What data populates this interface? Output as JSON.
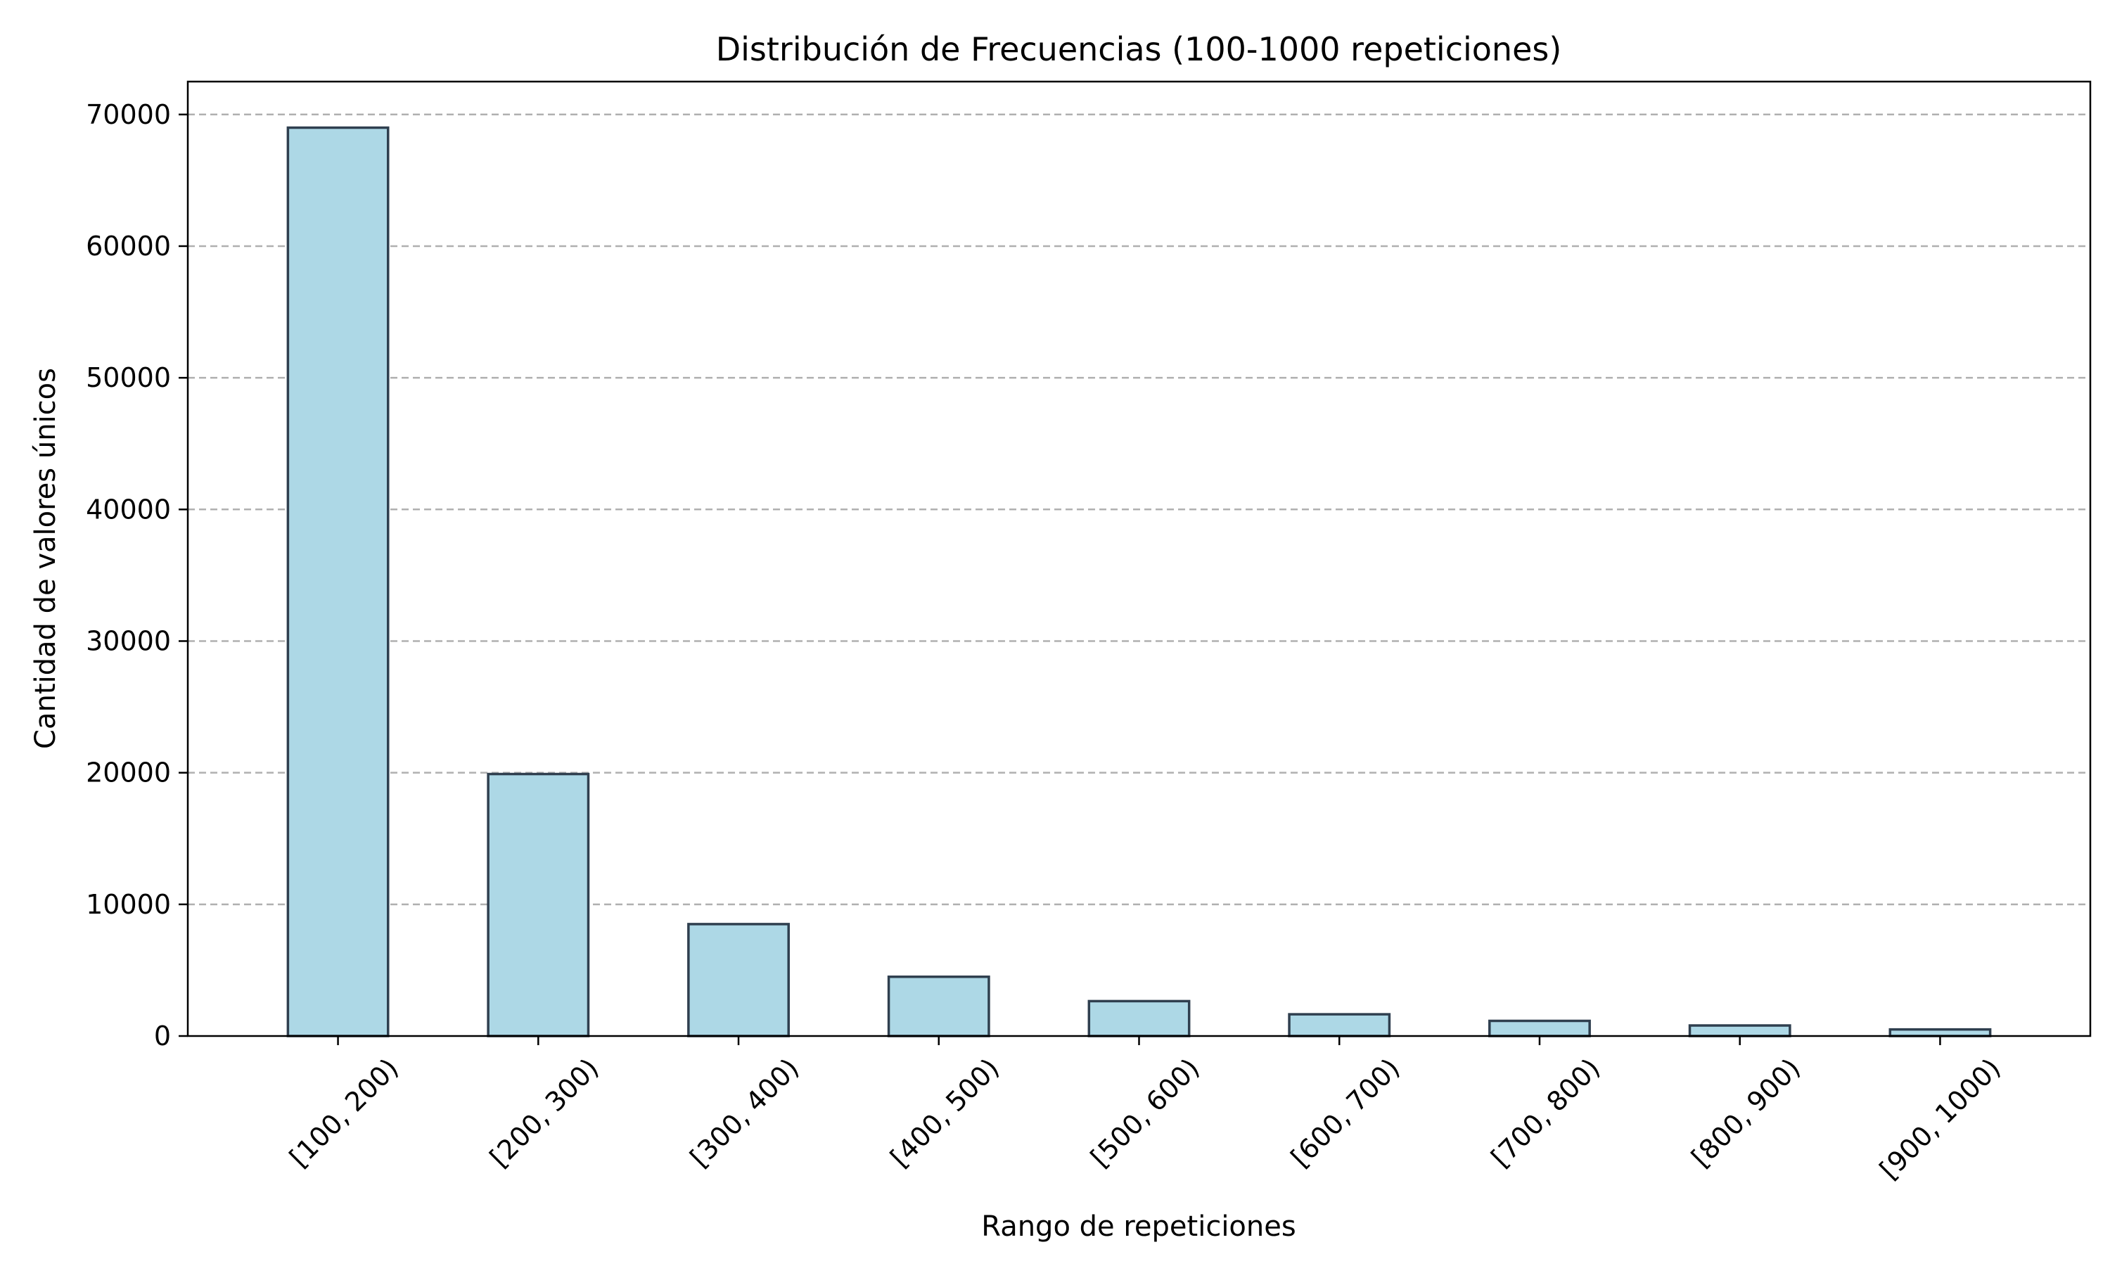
{
  "chart_data": {
    "type": "bar",
    "title": "Distribución de Frecuencias (100-1000 repeticiones)",
    "xlabel": "Rango de repeticiones",
    "ylabel": "Cantidad de valores únicos",
    "categories": [
      "[100, 200)",
      "[200, 300)",
      "[300, 400)",
      "[400, 500)",
      "[500, 600)",
      "[600, 700)",
      "[700, 800)",
      "[800, 900)",
      "[900, 1000)"
    ],
    "values": [
      69000,
      19900,
      8500,
      4500,
      2650,
      1650,
      1150,
      800,
      500
    ],
    "ylim": [
      0,
      72500
    ],
    "yticks": [
      0,
      10000,
      20000,
      30000,
      40000,
      50000,
      60000,
      70000
    ],
    "ytick_labels": [
      "0",
      "10000",
      "20000",
      "30000",
      "40000",
      "50000",
      "60000",
      "70000"
    ],
    "grid": "y-dashed",
    "legend": "none",
    "colors": {
      "bar_fill": "#add8e6",
      "bar_edge": "#2f3f4f",
      "grid": "#b0b0b0"
    }
  }
}
